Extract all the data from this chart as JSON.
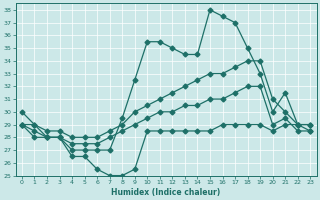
{
  "xlabel": "Humidex (Indice chaleur)",
  "xlim": [
    -0.5,
    23.5
  ],
  "ylim": [
    25,
    38.5
  ],
  "yticks": [
    25,
    26,
    27,
    28,
    29,
    30,
    31,
    32,
    33,
    34,
    35,
    36,
    37,
    38
  ],
  "xticks": [
    0,
    1,
    2,
    3,
    4,
    5,
    6,
    7,
    8,
    9,
    10,
    11,
    12,
    13,
    14,
    15,
    16,
    17,
    18,
    19,
    20,
    21,
    22,
    23
  ],
  "bg_color": "#cce8e8",
  "line_color": "#1e7068",
  "x": [
    0,
    1,
    2,
    3,
    4,
    5,
    6,
    7,
    8,
    9,
    10,
    11,
    12,
    13,
    14,
    15,
    16,
    17,
    18,
    19,
    20,
    21,
    22,
    23
  ],
  "y_max": [
    30,
    29,
    28,
    28,
    27,
    27,
    27,
    27,
    29.5,
    32.5,
    35.5,
    35.5,
    35,
    34.5,
    34.5,
    38,
    37.5,
    37,
    35,
    33,
    30,
    31.5,
    29,
    29
  ],
  "y_hi": [
    29,
    29,
    28.5,
    28.5,
    28,
    28,
    28,
    28.5,
    29,
    30,
    30.5,
    31,
    31.5,
    32,
    32.5,
    33,
    33,
    33.5,
    34,
    34,
    31,
    30,
    29,
    29
  ],
  "y_lo": [
    29,
    28.5,
    28,
    28,
    27.5,
    27.5,
    27.5,
    28,
    28.5,
    29,
    29.5,
    30,
    30,
    30.5,
    30.5,
    31,
    31,
    31.5,
    32,
    32,
    29,
    29.5,
    28.5,
    28.5
  ],
  "y_min": [
    29,
    28,
    28,
    28,
    26.5,
    26.5,
    25.5,
    25,
    25,
    25.5,
    28.5,
    28.5,
    28.5,
    28.5,
    28.5,
    28.5,
    29,
    29,
    29,
    29,
    28.5,
    29,
    29,
    28.5
  ]
}
